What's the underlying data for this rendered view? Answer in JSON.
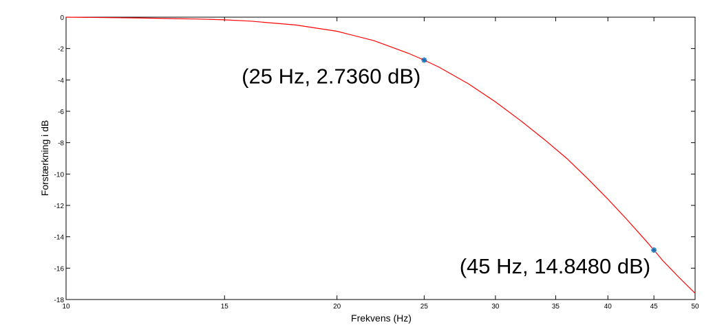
{
  "chart_data": {
    "type": "line",
    "title": "",
    "xlabel": "Frekvens (Hz)",
    "ylabel": "Forstærkning i dB",
    "x_scale": "log",
    "xlim": [
      10,
      50
    ],
    "ylim": [
      -18,
      0
    ],
    "grid": false,
    "x_ticks": [
      10,
      15,
      20,
      25,
      30,
      35,
      40,
      45,
      50
    ],
    "x_tick_labels": [
      "10",
      "15",
      "20",
      "25",
      "30",
      "35",
      "40",
      "45",
      "50"
    ],
    "y_ticks": [
      0,
      -2,
      -4,
      -6,
      -8,
      -10,
      -12,
      -14,
      -16,
      -18
    ],
    "y_tick_labels": [
      "0",
      "-2",
      "-4",
      "-6",
      "-8",
      "-10",
      "-12",
      "-14",
      "-16",
      "-18"
    ],
    "colors": {
      "line": "#ff0000",
      "marker": "#1f6fb4",
      "axes": "#000000"
    },
    "series": [
      {
        "line_color": "#ff0000",
        "x": [
          10,
          12,
          14,
          15,
          16,
          18,
          20,
          22,
          24,
          25,
          26,
          28,
          30,
          32,
          34,
          36,
          38,
          40,
          42,
          44,
          45,
          46,
          48,
          50
        ],
        "y": [
          0,
          -0.05,
          -0.12,
          -0.17,
          -0.25,
          -0.5,
          -0.9,
          -1.5,
          -2.3,
          -2.736,
          -3.2,
          -4.25,
          -5.4,
          -6.6,
          -7.8,
          -9.0,
          -10.3,
          -11.6,
          -12.9,
          -14.2,
          -14.848,
          -15.5,
          -16.6,
          -17.6
        ]
      }
    ],
    "highlighted_points": [
      {
        "x": 25,
        "y": -2.736,
        "label": "(25 Hz, 2.7360 dB)"
      },
      {
        "x": 45,
        "y": -14.848,
        "label": "(45 Hz, 14.8480 dB)"
      }
    ]
  }
}
